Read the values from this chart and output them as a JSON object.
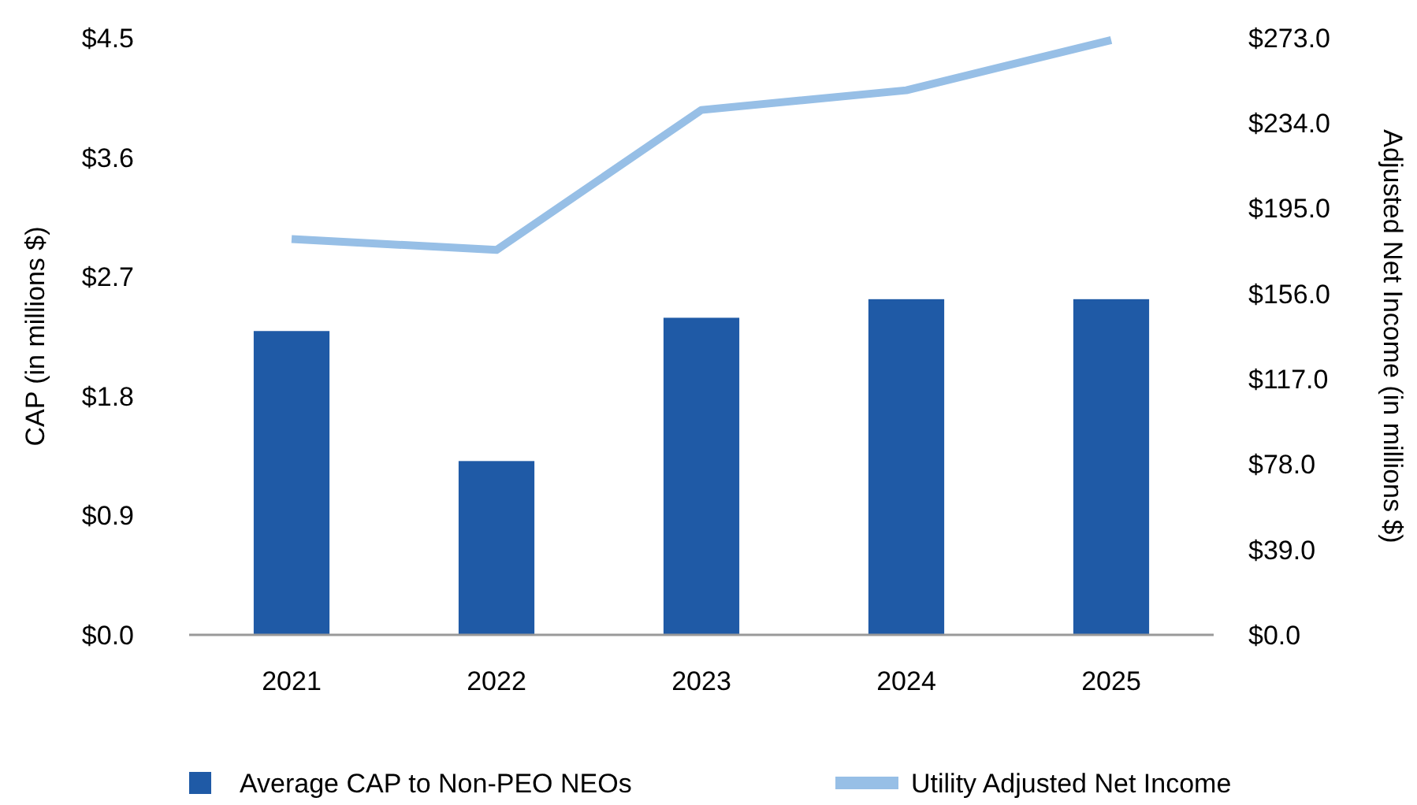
{
  "chart_data": {
    "type": "bar",
    "categories": [
      "2021",
      "2022",
      "2023",
      "2024",
      "2025"
    ],
    "series": [
      {
        "name": "Average CAP to Non-PEO NEOs",
        "color": "#1f5aa6",
        "values": [
          2.29,
          1.31,
          2.39,
          2.53,
          2.53
        ]
      },
      {
        "name": "Utility Adjusted Net Income",
        "type": "line",
        "axis": "y2",
        "color": "#97bfe6",
        "values": [
          181,
          176,
          240,
          249,
          272
        ]
      }
    ],
    "ylabel": "CAP (in millions $)",
    "y2label": "Adjusted Net Income (in millions $)",
    "ylim": [
      0,
      4.5
    ],
    "yticks": [
      {
        "value": 0,
        "label": "$0.0"
      },
      {
        "value": 0.9,
        "label": "$0.9"
      },
      {
        "value": 1.8,
        "label": "$1.8"
      },
      {
        "value": 2.7,
        "label": "$2.7"
      },
      {
        "value": 3.6,
        "label": "$3.6"
      },
      {
        "value": 4.5,
        "label": "$4.5"
      }
    ],
    "y2lim": [
      0,
      273
    ],
    "y2ticks": [
      {
        "value": 0,
        "label": "$0.0"
      },
      {
        "value": 39,
        "label": "$39.0"
      },
      {
        "value": 78,
        "label": "$78.0"
      },
      {
        "value": 117,
        "label": "$117.0"
      },
      {
        "value": 156,
        "label": "$156.0"
      },
      {
        "value": 195,
        "label": "$195.0"
      },
      {
        "value": 234,
        "label": "$234.0"
      },
      {
        "value": 273,
        "label": "$273.0"
      }
    ],
    "legend": "bottom",
    "grid": false
  }
}
